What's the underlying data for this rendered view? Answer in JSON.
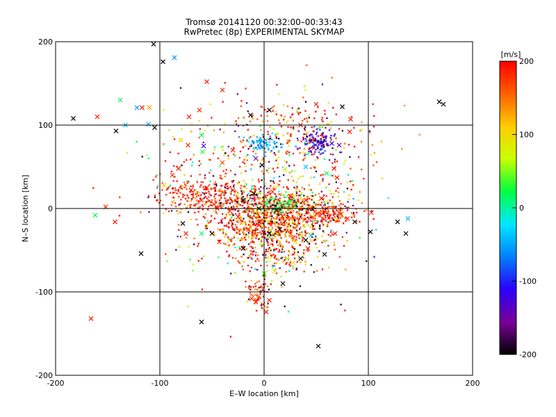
{
  "chart_data": {
    "type": "scatter",
    "title_line1": "Tromsø 20141120 00:32:00–00:33:43",
    "title_line2": "RwPretec (8p) EXPERIMENTAL SKYMAP",
    "xlabel": "E–W location [km]",
    "ylabel": "N–S location [km]",
    "xlim": [
      -200,
      200
    ],
    "ylim": [
      -200,
      200
    ],
    "xticks": [
      -200,
      -100,
      0,
      100,
      200
    ],
    "yticks": [
      -200,
      -100,
      0,
      100,
      200
    ],
    "xtick_labels": [
      "-200",
      "-100",
      "0",
      "100",
      "200"
    ],
    "ytick_labels": [
      "-200",
      "-100",
      "0",
      "100",
      "200"
    ],
    "grid_lines": [
      -100,
      0,
      100
    ],
    "colorbar": {
      "label": "[m/s]",
      "range": [
        -200,
        200
      ],
      "ticks": [
        200,
        100,
        0,
        -100,
        -200
      ],
      "tick_labels": [
        "200",
        "100",
        "0",
        "-100",
        "-200"
      ],
      "colormap": [
        "#000000",
        "#7a0099",
        "#2a00ff",
        "#0080ff",
        "#00e8ff",
        "#00ff40",
        "#c8ff00",
        "#ffcc00",
        "#ff6000",
        "#ff0000"
      ]
    },
    "large_markers": [
      {
        "x": -183,
        "y": 108,
        "v": -200
      },
      {
        "x": -160,
        "y": 110,
        "v": 190
      },
      {
        "x": -142,
        "y": 93,
        "v": -200
      },
      {
        "x": -138,
        "y": 130,
        "v": 20
      },
      {
        "x": -133,
        "y": 100,
        "v": -40
      },
      {
        "x": -122,
        "y": 121,
        "v": -50
      },
      {
        "x": -117,
        "y": 121,
        "v": 190
      },
      {
        "x": -110,
        "y": 121,
        "v": 130
      },
      {
        "x": -111,
        "y": 101,
        "v": -50
      },
      {
        "x": -105,
        "y": 97,
        "v": -200
      },
      {
        "x": -97,
        "y": 176,
        "v": -200
      },
      {
        "x": -86,
        "y": 181,
        "v": -60
      },
      {
        "x": -106,
        "y": 197,
        "v": -200
      },
      {
        "x": -96,
        "y": 28,
        "v": 110
      },
      {
        "x": -162,
        "y": -8,
        "v": 20
      },
      {
        "x": -152,
        "y": 2,
        "v": 180
      },
      {
        "x": -143,
        "y": -16,
        "v": 190
      },
      {
        "x": -118,
        "y": -54,
        "v": -200
      },
      {
        "x": -166,
        "y": -132,
        "v": 190
      },
      {
        "x": -55,
        "y": 152,
        "v": 190
      },
      {
        "x": -72,
        "y": 110,
        "v": 190
      },
      {
        "x": -62,
        "y": 118,
        "v": 180
      },
      {
        "x": -60,
        "y": 88,
        "v": 10
      },
      {
        "x": -58,
        "y": 75,
        "v": -120
      },
      {
        "x": -59,
        "y": 68,
        "v": 30
      },
      {
        "x": -73,
        "y": 76,
        "v": 180
      },
      {
        "x": -80,
        "y": 82,
        "v": 110
      },
      {
        "x": -40,
        "y": 142,
        "v": 180
      },
      {
        "x": -13,
        "y": 112,
        "v": -200
      },
      {
        "x": 5,
        "y": 118,
        "v": -200
      },
      {
        "x": 50,
        "y": 125,
        "v": 190
      },
      {
        "x": 75,
        "y": 122,
        "v": -200
      },
      {
        "x": 83,
        "y": 107,
        "v": 190
      },
      {
        "x": 82,
        "y": 92,
        "v": 190
      },
      {
        "x": 35,
        "y": 100,
        "v": 190
      },
      {
        "x": 65,
        "y": 78,
        "v": -120
      },
      {
        "x": 72,
        "y": 76,
        "v": -150
      },
      {
        "x": -8,
        "y": 60,
        "v": -150
      },
      {
        "x": 20,
        "y": 47,
        "v": 80
      },
      {
        "x": -2,
        "y": 52,
        "v": -200
      },
      {
        "x": 40,
        "y": 50,
        "v": -40
      },
      {
        "x": 60,
        "y": 42,
        "v": 20
      },
      {
        "x": 67,
        "y": 48,
        "v": 190
      },
      {
        "x": 70,
        "y": 37,
        "v": 190
      },
      {
        "x": -82,
        "y": 48,
        "v": 190
      },
      {
        "x": -88,
        "y": 40,
        "v": 180
      },
      {
        "x": -40,
        "y": 55,
        "v": 170
      },
      {
        "x": -30,
        "y": 70,
        "v": 190
      },
      {
        "x": 103,
        "y": -5,
        "v": 180
      },
      {
        "x": 102,
        "y": -28,
        "v": -200
      },
      {
        "x": 128,
        "y": -16,
        "v": -200
      },
      {
        "x": 136,
        "y": -30,
        "v": -200
      },
      {
        "x": 138,
        "y": -12,
        "v": -40
      },
      {
        "x": 87,
        "y": -16,
        "v": -200
      },
      {
        "x": 168,
        "y": 128,
        "v": -200
      },
      {
        "x": 172,
        "y": 125,
        "v": -200
      },
      {
        "x": -60,
        "y": -136,
        "v": -200
      },
      {
        "x": 52,
        "y": -165,
        "v": -200
      },
      {
        "x": 18,
        "y": -90,
        "v": -200
      },
      {
        "x": -1,
        "y": -115,
        "v": 180
      },
      {
        "x": -8,
        "y": -112,
        "v": 190
      },
      {
        "x": 2,
        "y": -124,
        "v": 190
      },
      {
        "x": 5,
        "y": -110,
        "v": 190
      },
      {
        "x": -12,
        "y": -108,
        "v": 180
      },
      {
        "x": 0,
        "y": -78,
        "v": 30
      },
      {
        "x": 10,
        "y": -75,
        "v": 100
      },
      {
        "x": 28,
        "y": -65,
        "v": 90
      },
      {
        "x": 22,
        "y": -60,
        "v": 60
      },
      {
        "x": 35,
        "y": -60,
        "v": -200
      },
      {
        "x": 58,
        "y": -55,
        "v": -200
      },
      {
        "x": 42,
        "y": -48,
        "v": 190
      },
      {
        "x": -20,
        "y": -48,
        "v": -200
      },
      {
        "x": -43,
        "y": -40,
        "v": 190
      },
      {
        "x": -50,
        "y": -30,
        "v": -200
      },
      {
        "x": -60,
        "y": -30,
        "v": 10
      },
      {
        "x": -75,
        "y": -30,
        "v": 190
      },
      {
        "x": -78,
        "y": -18,
        "v": -200
      },
      {
        "x": 68,
        "y": -30,
        "v": 190
      },
      {
        "x": 40,
        "y": -38,
        "v": -200
      },
      {
        "x": 30,
        "y": -40,
        "v": 100
      },
      {
        "x": 45,
        "y": -32,
        "v": -40
      },
      {
        "x": 15,
        "y": -25,
        "v": -200
      },
      {
        "x": 5,
        "y": -30,
        "v": -200
      },
      {
        "x": -5,
        "y": -20,
        "v": 190
      },
      {
        "x": -15,
        "y": -25,
        "v": 190
      },
      {
        "x": 20,
        "y": -15,
        "v": 190
      },
      {
        "x": -25,
        "y": -10,
        "v": 190
      },
      {
        "x": -45,
        "y": 0,
        "v": 190
      },
      {
        "x": -48,
        "y": 5,
        "v": 190
      },
      {
        "x": -60,
        "y": 10,
        "v": 190
      },
      {
        "x": -70,
        "y": 22,
        "v": 190
      },
      {
        "x": -55,
        "y": 25,
        "v": 190
      },
      {
        "x": -30,
        "y": 22,
        "v": 190
      },
      {
        "x": -20,
        "y": 10,
        "v": -200
      },
      {
        "x": -10,
        "y": 18,
        "v": -200
      },
      {
        "x": 8,
        "y": 20,
        "v": 190
      },
      {
        "x": 25,
        "y": 15,
        "v": 190
      },
      {
        "x": 40,
        "y": 10,
        "v": 190
      },
      {
        "x": 55,
        "y": 12,
        "v": 190
      },
      {
        "x": 60,
        "y": 0,
        "v": 190
      },
      {
        "x": 72,
        "y": -5,
        "v": 190
      },
      {
        "x": 80,
        "y": -12,
        "v": 180
      },
      {
        "x": -33,
        "y": -3,
        "v": 190
      },
      {
        "x": -5,
        "y": 0,
        "v": -200
      },
      {
        "x": 12,
        "y": -2,
        "v": -200
      }
    ],
    "small_marker_count": 2600
  }
}
